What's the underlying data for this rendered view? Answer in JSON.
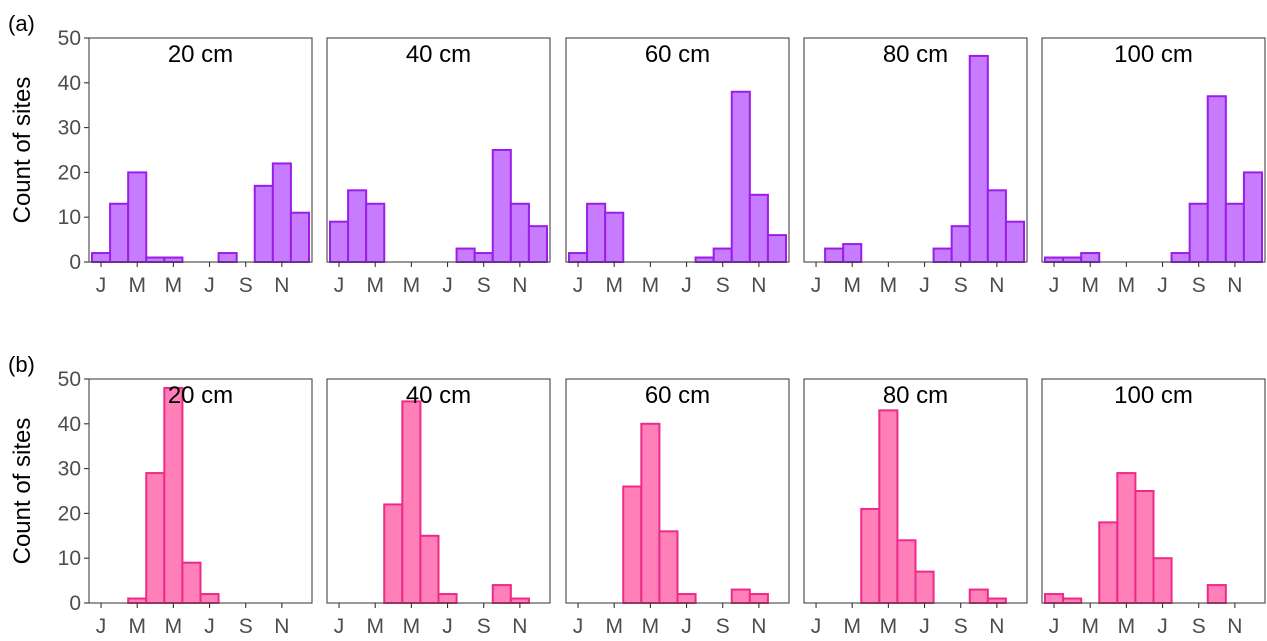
{
  "chart_data": [
    {
      "type": "bar",
      "panel_label": "(a)",
      "ylabel": "Count of sites",
      "ylim": [
        0,
        50
      ],
      "yticks": [
        0,
        10,
        20,
        30,
        40,
        50
      ],
      "xtick_labels": [
        "J",
        "M",
        "M",
        "J",
        "S",
        "N"
      ],
      "bins": 12,
      "color": "#c77cff",
      "edge_color": "#9a1ee8",
      "facets": [
        {
          "title": "20 cm",
          "values": [
            2,
            13,
            20,
            1,
            1,
            0,
            0,
            2,
            0,
            17,
            22,
            11
          ]
        },
        {
          "title": "40 cm",
          "values": [
            9,
            16,
            13,
            0,
            0,
            0,
            0,
            3,
            2,
            25,
            13,
            8
          ]
        },
        {
          "title": "60 cm",
          "values": [
            2,
            13,
            11,
            0,
            0,
            0,
            0,
            1,
            3,
            38,
            15,
            6
          ]
        },
        {
          "title": "80 cm",
          "values": [
            0,
            3,
            4,
            0,
            0,
            0,
            0,
            3,
            8,
            46,
            16,
            9
          ]
        },
        {
          "title": "100 cm",
          "values": [
            1,
            1,
            2,
            0,
            0,
            0,
            0,
            2,
            13,
            37,
            13,
            20
          ]
        }
      ]
    },
    {
      "type": "bar",
      "panel_label": "(b)",
      "ylabel": "Count of sites",
      "ylim": [
        0,
        50
      ],
      "yticks": [
        0,
        10,
        20,
        30,
        40,
        50
      ],
      "xtick_labels": [
        "J",
        "M",
        "M",
        "J",
        "S",
        "N"
      ],
      "bins": 12,
      "color": "#ff7fb8",
      "edge_color": "#ee2a88",
      "facets": [
        {
          "title": "20 cm",
          "values": [
            0,
            0,
            1,
            29,
            48,
            9,
            2,
            0,
            0,
            0,
            0,
            0
          ]
        },
        {
          "title": "40 cm",
          "values": [
            0,
            0,
            0,
            22,
            45,
            15,
            2,
            0,
            0,
            4,
            1,
            0
          ]
        },
        {
          "title": "60 cm",
          "values": [
            0,
            0,
            0,
            26,
            40,
            16,
            2,
            0,
            0,
            3,
            2,
            0
          ]
        },
        {
          "title": "80 cm",
          "values": [
            0,
            0,
            0,
            21,
            43,
            14,
            7,
            0,
            0,
            3,
            1,
            0
          ]
        },
        {
          "title": "100 cm",
          "values": [
            2,
            1,
            0,
            18,
            29,
            25,
            10,
            0,
            0,
            4,
            0,
            0
          ]
        }
      ]
    }
  ]
}
